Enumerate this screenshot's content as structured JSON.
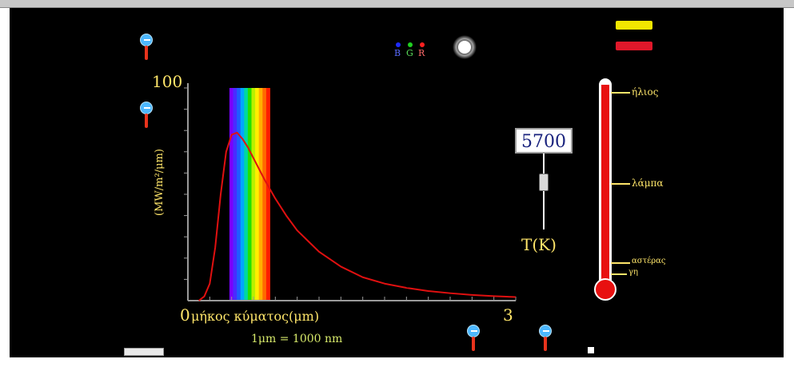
{
  "colors": {
    "background": "#000000",
    "curve": "#e01010",
    "axis_text": "#ffe66a",
    "note_text": "#d6e86a",
    "thermometer": "#e81010"
  },
  "icons": {
    "slider_top_left": "slider-pin-icon",
    "slider_mid_left": "slider-pin-icon",
    "slider_bottom_1": "slider-pin-icon",
    "slider_bottom_2": "slider-pin-icon",
    "star": "star-glow-icon"
  },
  "rgb_indicator": {
    "labels": [
      "B",
      "G",
      "R"
    ],
    "colors": [
      "#1e2bff",
      "#20d020",
      "#ff2020"
    ]
  },
  "buttons": {
    "top": "",
    "bottom": ""
  },
  "temperature": {
    "value": "5700",
    "label": "T(K)",
    "slider_fraction": 0.43
  },
  "thermometer": {
    "ticks": [
      "ήλιος",
      "λάμπα",
      "αστέρας",
      "γη"
    ]
  },
  "bottom_controls": {
    "slider1_label": "",
    "slider2_label": "",
    "checkbox_label": ""
  },
  "chart_data": {
    "type": "line",
    "title": "",
    "xlabel": "μήκος κύματος(μm)",
    "ylabel": "(MW/m²/μm)",
    "note": "1μm = 1000 nm",
    "x_min_label": "0",
    "x_max_label": "3",
    "y_max_label": "100",
    "xlim": [
      0,
      3
    ],
    "ylim": [
      0,
      100
    ],
    "visible_band": [
      0.38,
      0.75
    ],
    "series": [
      {
        "x": [
          0.1,
          0.15,
          0.2,
          0.25,
          0.3,
          0.35,
          0.4,
          0.45,
          0.5,
          0.55,
          0.6,
          0.7,
          0.8,
          0.9,
          1.0,
          1.2,
          1.4,
          1.6,
          1.8,
          2.0,
          2.2,
          2.4,
          2.6,
          2.8,
          3.0
        ],
        "y": [
          0,
          2,
          8,
          25,
          50,
          70,
          78,
          79,
          76,
          72,
          67,
          57,
          48,
          40,
          33,
          23,
          16,
          11,
          8,
          6,
          4.5,
          3.5,
          2.7,
          2.1,
          1.7
        ]
      }
    ]
  }
}
